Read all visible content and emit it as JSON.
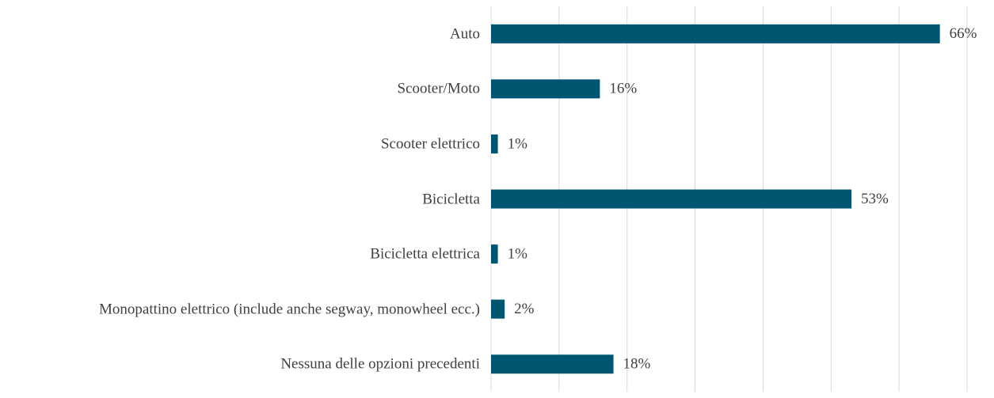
{
  "chart_data": {
    "type": "barh",
    "categories": [
      "Auto",
      "Scooter/Moto",
      "Scooter elettrico",
      "Bicicletta",
      "Bicicletta elettrica",
      "Monopattino elettrico (include anche segway, monowheel ecc.)",
      "Nessuna delle opzioni precedenti"
    ],
    "values": [
      66,
      16,
      1,
      53,
      1,
      2,
      18
    ],
    "value_labels": [
      "66%",
      "16%",
      "1%",
      "53%",
      "1%",
      "2%",
      "18%"
    ],
    "color": "#005670",
    "xlim": [
      0,
      70
    ],
    "xticks": [
      0,
      10,
      20,
      30,
      40,
      50,
      60,
      70
    ],
    "grid": true
  }
}
